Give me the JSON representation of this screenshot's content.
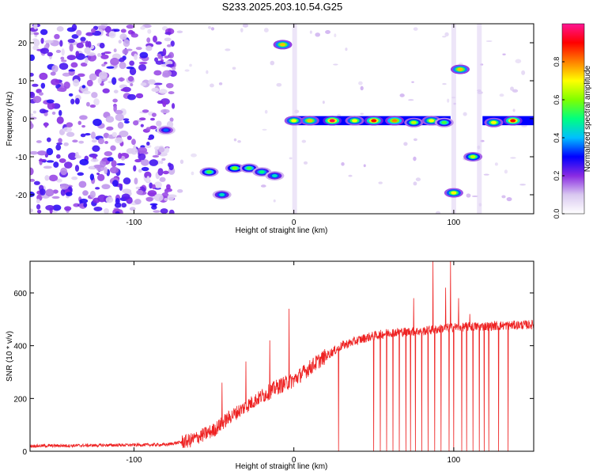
{
  "title": "S233.2025.203.10.54.G25",
  "chart_data": [
    {
      "type": "heatmap",
      "xlabel": "Height of straight line (km)",
      "ylabel": "Frequency (Hz)",
      "xlim": [
        -165,
        150
      ],
      "ylim": [
        -25,
        25
      ],
      "xticks": [
        -100,
        0,
        100
      ],
      "yticks": [
        -20,
        -10,
        0,
        10,
        20
      ],
      "colorbar": {
        "label": "Normalized spectral amplitude",
        "range": [
          0,
          1
        ],
        "ticks": [
          "0.0",
          "0.2",
          "0.4",
          "0.6",
          "0.8"
        ],
        "colors": [
          "#ffffff",
          "#d9c8f0",
          "#8a2be2",
          "#0000ff",
          "#00bfff",
          "#00ff80",
          "#7fff00",
          "#ffff00",
          "#ff8000",
          "#ff0000",
          "#ff1493"
        ]
      },
      "blobs": [
        {
          "x": 19.5,
          "y": 5,
          "xr": 150,
          "yr": 24,
          "amp": 0.08,
          "count": 1
        },
        {
          "x": -80,
          "y": -3,
          "amp": 0.35
        },
        {
          "x": -53,
          "y": -14,
          "amp": 0.55
        },
        {
          "x": -45,
          "y": -20,
          "amp": 0.45
        },
        {
          "x": -37,
          "y": -13,
          "amp": 0.6
        },
        {
          "x": -28,
          "y": -13,
          "amp": 0.55
        },
        {
          "x": -20,
          "y": -14,
          "amp": 0.5
        },
        {
          "x": -12,
          "y": -15,
          "amp": 0.45
        },
        {
          "x": -7,
          "y": 19.5,
          "amp": 0.75
        },
        {
          "x": 0,
          "y": -0.5,
          "amp": 0.7
        },
        {
          "x": 10,
          "y": -0.5,
          "amp": 0.75
        },
        {
          "x": 24,
          "y": -0.5,
          "amp": 0.95
        },
        {
          "x": 38,
          "y": -0.5,
          "amp": 0.7
        },
        {
          "x": 50,
          "y": -0.5,
          "amp": 0.9
        },
        {
          "x": 63,
          "y": -0.5,
          "amp": 0.8
        },
        {
          "x": 75,
          "y": -1,
          "amp": 0.65
        },
        {
          "x": 86,
          "y": -0.5,
          "amp": 0.7
        },
        {
          "x": 94,
          "y": -1,
          "amp": 0.55
        },
        {
          "x": 100,
          "y": -19.5,
          "amp": 0.7
        },
        {
          "x": 104,
          "y": 13,
          "amp": 0.75
        },
        {
          "x": 112,
          "y": -10,
          "amp": 0.65
        },
        {
          "x": 125,
          "y": -1,
          "amp": 0.7
        },
        {
          "x": 137,
          "y": -0.5,
          "amp": 0.9
        }
      ]
    },
    {
      "type": "line",
      "xlabel": "Height of straight line (km)",
      "ylabel": "SNR (10 * v/v)",
      "xlim": [
        -165,
        150
      ],
      "ylim": [
        0,
        720
      ],
      "xticks": [
        -100,
        0,
        100
      ],
      "yticks": [
        0,
        200,
        400,
        600
      ],
      "color": "#ee2222",
      "baseline": [
        [
          -165,
          20
        ],
        [
          -80,
          25
        ],
        [
          -65,
          40
        ],
        [
          -50,
          80
        ],
        [
          -40,
          130
        ],
        [
          -25,
          190
        ],
        [
          -10,
          245
        ],
        [
          0,
          270
        ],
        [
          15,
          340
        ],
        [
          30,
          400
        ],
        [
          45,
          430
        ],
        [
          60,
          450
        ],
        [
          80,
          455
        ],
        [
          100,
          470
        ],
        [
          150,
          480
        ]
      ],
      "spikes": [
        [
          -3,
          540
        ],
        [
          -15,
          420
        ],
        [
          -45,
          260
        ],
        [
          -30,
          340
        ],
        [
          75,
          580
        ],
        [
          87,
          720
        ],
        [
          95,
          620
        ],
        [
          98,
          720
        ],
        [
          100,
          700
        ],
        [
          103,
          580
        ],
        [
          110,
          520
        ]
      ],
      "dropouts": [
        28,
        50,
        54,
        58,
        62,
        66,
        70,
        73,
        76,
        80,
        84,
        88,
        92,
        97,
        100,
        105,
        108,
        112,
        116,
        119,
        122,
        128,
        134
      ]
    }
  ]
}
